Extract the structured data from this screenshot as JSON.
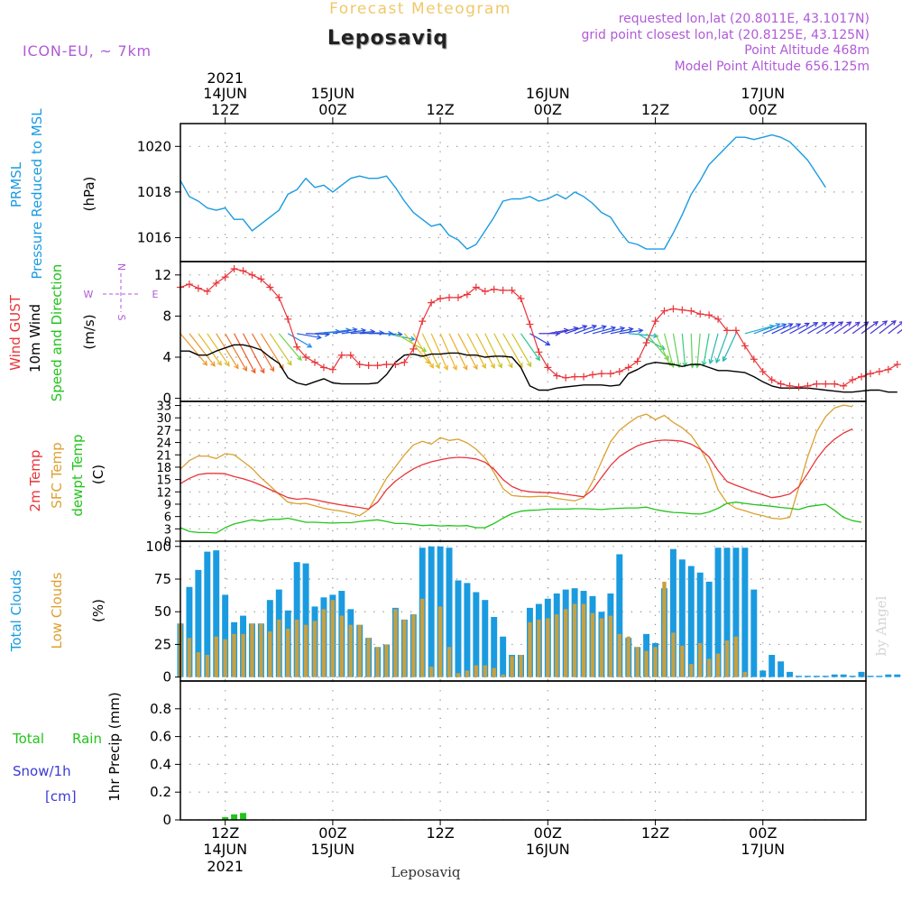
{
  "header": {
    "product": "Forecast Meteogram",
    "location": "Leposaviq",
    "model": "ICON-EU, ~ 7km",
    "requested": "requested lon,lat (20.8011E, 43.1017N)",
    "grid_point": "grid point closest lon,lat (20.8125E, 43.125N)",
    "altitude": "Point Altitude 468m",
    "model_altitude": "Model Point Altitude 656.125m",
    "credit": "by Angel",
    "bottom_label": "Leposaviq"
  },
  "time_axis": {
    "year": "2021",
    "ticks": [
      {
        "t": 12,
        "hour": "12Z",
        "day": "14JUN"
      },
      {
        "t": 24,
        "hour": "00Z",
        "day": "15JUN"
      },
      {
        "t": 36,
        "hour": "12Z",
        "day": ""
      },
      {
        "t": 48,
        "hour": "00Z",
        "day": "16JUN"
      },
      {
        "t": 60,
        "hour": "12Z",
        "day": ""
      },
      {
        "t": 72,
        "hour": "00Z",
        "day": "17JUN"
      }
    ],
    "range_hours": [
      7,
      83.5
    ]
  },
  "colors": {
    "pressure": "#1a9be0",
    "gust": "#e8353a",
    "wind": "#000000",
    "temp2m": "#e8353a",
    "sfc": "#dca030",
    "dewpt": "#22c41a",
    "clouds_total": "#1a9be0",
    "clouds_low": "#c8a040",
    "rain": "#22c41a",
    "snow": "#3a3ad8",
    "header_purple": "#b05ad8",
    "header_orange": "#f0c86a"
  },
  "panels": {
    "pressure": {
      "labels": [
        "PRMSL",
        "Pressure Reduced to MSL",
        "(hPa)"
      ]
    },
    "wind": {
      "labels": [
        "Wind GUST",
        "10m Wind",
        "Speed and Direction",
        "(m/s)"
      ],
      "compass": [
        "N",
        "W",
        "E",
        "S"
      ]
    },
    "temp": {
      "labels": [
        "2m Temp",
        "SFC Temp",
        "dewpt Temp",
        "(C)"
      ]
    },
    "clouds": {
      "labels": [
        "Total Clouds",
        "Low Clouds",
        "(%)"
      ]
    },
    "precip": {
      "labels": [
        "Total",
        "Rain",
        "Snow/1h",
        "[cm]",
        "1hr Precip (mm)"
      ]
    }
  },
  "chart_data": [
    {
      "type": "line",
      "title": "PRMSL",
      "ylabel": "(hPa)",
      "ylim": [
        1014.95,
        1021.0
      ],
      "yticks": [
        1016,
        1018,
        1020
      ],
      "grid": true,
      "start_hour": 7,
      "step_hours": 1,
      "series": [
        {
          "name": "PRMSL",
          "values": [
            1018.5,
            1017.8,
            1017.6,
            1017.3,
            1017.2,
            1017.3,
            1016.8,
            1016.8,
            1016.3,
            1016.6,
            1016.9,
            1017.2,
            1017.9,
            1018.1,
            1018.6,
            1018.2,
            1018.3,
            1018.0,
            1018.3,
            1018.6,
            1018.7,
            1018.6,
            1018.6,
            1018.7,
            1018.2,
            1017.6,
            1017.1,
            1016.8,
            1016.5,
            1016.6,
            1016.1,
            1015.9,
            1015.5,
            1015.7,
            1016.3,
            1016.9,
            1017.6,
            1017.7,
            1017.7,
            1017.8,
            1017.6,
            1017.7,
            1017.9,
            1017.7,
            1018.0,
            1017.8,
            1017.5,
            1017.1,
            1016.9,
            1016.3,
            1015.8,
            1015.7,
            1015.5,
            1015.5,
            1015.5,
            1016.2,
            1017.0,
            1017.9,
            1018.5,
            1019.2,
            1019.6,
            1020.0,
            1020.4,
            1020.4,
            1020.3,
            1020.4,
            1020.5,
            1020.4,
            1020.2,
            1019.8,
            1019.4,
            1018.8,
            1018.2
          ]
        }
      ]
    },
    {
      "type": "line",
      "title": "Wind",
      "ylabel": "(m/s)",
      "ylim": [
        -0.3,
        13.3
      ],
      "yticks": [
        0,
        4,
        8,
        12
      ],
      "grid": true,
      "start_hour": 7,
      "step_hours": 1,
      "series": [
        {
          "name": "Wind GUST",
          "values": [
            10.8,
            11.1,
            10.7,
            10.4,
            11.2,
            11.8,
            12.6,
            12.4,
            12.0,
            11.6,
            10.8,
            9.8,
            7.7,
            5.0,
            4.0,
            3.5,
            3.0,
            2.8,
            4.2,
            4.2,
            3.3,
            3.2,
            3.2,
            3.3,
            3.3,
            3.5,
            4.8,
            7.5,
            9.3,
            9.7,
            9.8,
            9.8,
            10.1,
            10.8,
            10.4,
            10.6,
            10.5,
            10.5,
            9.7,
            7.2,
            4.5,
            3.0,
            2.2,
            2.0,
            2.1,
            2.1,
            2.3,
            2.4,
            2.4,
            2.6,
            3.0,
            3.6,
            5.4,
            7.5,
            8.5,
            8.7,
            8.6,
            8.5,
            8.2,
            8.1,
            7.7,
            6.6,
            6.6,
            5.1,
            3.8,
            2.6,
            1.8,
            1.4,
            1.2,
            1.1,
            1.2,
            1.4,
            1.4,
            1.4,
            1.2,
            1.8,
            2.1,
            2.4,
            2.6,
            2.8,
            3.3
          ]
        },
        {
          "name": "10m Wind",
          "values": [
            4.6,
            4.6,
            4.2,
            4.2,
            4.6,
            4.9,
            5.2,
            5.2,
            5.0,
            4.7,
            4.0,
            3.4,
            2.0,
            1.5,
            1.3,
            1.6,
            1.9,
            1.5,
            1.4,
            1.4,
            1.4,
            1.4,
            1.5,
            2.3,
            3.5,
            4.2,
            4.3,
            4.1,
            4.3,
            4.3,
            4.4,
            4.4,
            4.2,
            4.2,
            4.0,
            4.1,
            4.1,
            4.0,
            3.0,
            1.2,
            0.8,
            0.8,
            1.0,
            1.1,
            1.2,
            1.3,
            1.3,
            1.3,
            1.2,
            1.3,
            2.4,
            2.8,
            3.3,
            3.5,
            3.4,
            3.3,
            3.1,
            3.3,
            3.3,
            3.0,
            2.7,
            2.7,
            2.6,
            2.5,
            2.1,
            1.6,
            1.2,
            1.0,
            1.0,
            1.0,
            1.0,
            0.9,
            0.8,
            0.7,
            0.6,
            0.6,
            0.7,
            0.8,
            0.8,
            0.6,
            0.6
          ]
        }
      ],
      "barbs": {
        "start_hour": 7,
        "step_hours": 1,
        "speed_scale": [
          0,
          5.5
        ],
        "dir_deg": [
          320,
          322,
          324,
          326,
          328,
          330,
          332,
          332,
          330,
          328,
          326,
          320,
          300,
          280,
          272,
          265,
          262,
          260,
          262,
          265,
          268,
          270,
          272,
          282,
          300,
          320,
          330,
          334,
          336,
          336,
          334,
          332,
          332,
          332,
          334,
          332,
          330,
          330,
          325,
          300,
          270,
          260,
          255,
          250,
          250,
          252,
          255,
          256,
          258,
          262,
          275,
          300,
          320,
          335,
          345,
          350,
          355,
          358,
          5,
          10,
          15,
          20,
          25,
          255,
          250,
          248,
          245,
          244,
          242,
          240,
          240,
          238,
          236,
          235,
          235,
          234,
          234,
          233,
          232,
          232,
          232
        ]
      }
    },
    {
      "type": "line",
      "title": "Temperature",
      "ylabel": "(C)",
      "ylim": [
        0,
        34
      ],
      "yticks": [
        0,
        3,
        6,
        9,
        12,
        15,
        18,
        21,
        24,
        27,
        30,
        33
      ],
      "grid": true,
      "start_hour": 7,
      "step_hours": 1,
      "series": [
        {
          "name": "2m Temp",
          "values": [
            14.0,
            15.3,
            16.2,
            16.5,
            16.5,
            16.4,
            15.7,
            15.2,
            14.5,
            13.6,
            12.6,
            11.6,
            10.6,
            10.2,
            10.4,
            10.1,
            9.6,
            9.2,
            8.8,
            8.5,
            8.2,
            7.8,
            9.5,
            12.5,
            14.6,
            16.2,
            17.6,
            18.6,
            19.3,
            19.8,
            20.2,
            20.4,
            20.3,
            20.0,
            19.2,
            17.5,
            15.0,
            13.3,
            12.4,
            12.0,
            11.9,
            11.8,
            11.7,
            11.4,
            11.1,
            10.8,
            12.5,
            15.5,
            18.4,
            20.6,
            22.0,
            23.2,
            23.9,
            24.4,
            24.6,
            24.5,
            24.3,
            23.6,
            22.4,
            20.5,
            17.2,
            14.5,
            13.6,
            12.8,
            12.0,
            11.3,
            10.6,
            10.9,
            11.5,
            13.2,
            16.5,
            20.0,
            22.8,
            24.8,
            26.3,
            27.3
          ]
        },
        {
          "name": "SFC Temp",
          "values": [
            17.5,
            19.6,
            20.7,
            20.7,
            20.1,
            21.3,
            21.0,
            19.4,
            17.7,
            15.4,
            13.5,
            11.4,
            9.5,
            9.1,
            9.2,
            8.6,
            8.0,
            7.6,
            7.3,
            6.8,
            6.2,
            7.7,
            11.5,
            15.3,
            18.1,
            21.0,
            23.4,
            24.3,
            23.6,
            25.2,
            24.5,
            24.8,
            23.9,
            22.4,
            20.2,
            16.7,
            12.8,
            11.1,
            10.9,
            10.8,
            10.9,
            10.9,
            10.4,
            10.1,
            9.8,
            10.6,
            14.5,
            19.4,
            24.2,
            27.0,
            28.7,
            30.2,
            30.9,
            29.6,
            30.6,
            28.9,
            27.6,
            25.7,
            22.6,
            18.5,
            12.5,
            9.3,
            8.0,
            7.4,
            6.7,
            6.2,
            5.6,
            5.4,
            5.8,
            13.0,
            20.5,
            26.6,
            30.3,
            32.4,
            33.1,
            32.7
          ]
        },
        {
          "name": "dewpt Temp",
          "values": [
            3.3,
            2.4,
            2.1,
            2.1,
            2.0,
            3.3,
            4.2,
            4.7,
            5.2,
            4.9,
            5.3,
            5.3,
            5.6,
            5.1,
            4.6,
            4.6,
            4.5,
            4.4,
            4.5,
            4.5,
            4.8,
            5.0,
            5.2,
            4.8,
            4.3,
            4.3,
            4.1,
            3.8,
            3.9,
            3.7,
            3.8,
            3.7,
            3.8,
            3.3,
            3.3,
            4.3,
            5.6,
            6.7,
            7.3,
            7.5,
            7.6,
            7.8,
            7.8,
            7.8,
            7.9,
            7.9,
            7.8,
            7.7,
            7.9,
            8.0,
            8.1,
            8.1,
            8.3,
            7.7,
            7.3,
            7.0,
            6.9,
            6.7,
            6.6,
            7.1,
            8.0,
            9.2,
            9.5,
            9.2,
            8.9,
            8.7,
            8.5,
            8.2,
            8.0,
            7.7,
            8.4,
            8.7,
            9.0,
            7.5,
            5.8,
            5.0,
            4.6
          ]
        }
      ]
    },
    {
      "type": "bar",
      "title": "Clouds",
      "ylabel": "(%)",
      "ylim": [
        -3,
        104
      ],
      "yticks": [
        0,
        25,
        50,
        75,
        100
      ],
      "grid": true,
      "start_hour": 7,
      "step_hours": 1,
      "series": [
        {
          "name": "Total Clouds",
          "values": [
            41,
            69,
            82,
            96,
            97,
            63,
            42,
            47,
            41,
            41,
            59,
            67,
            51,
            88,
            87,
            54,
            61,
            63,
            66,
            52,
            40,
            30,
            23,
            25,
            53,
            44,
            48,
            99,
            100,
            100,
            99,
            74,
            72,
            65,
            59,
            46,
            31,
            17,
            17,
            53,
            56,
            60,
            64,
            67,
            68,
            66,
            62,
            50,
            64,
            94,
            30,
            23,
            33,
            26,
            68,
            98,
            90,
            85,
            80,
            73,
            99,
            99,
            99,
            99,
            67,
            5,
            17,
            12,
            4,
            1,
            1,
            1,
            1,
            2,
            2,
            1,
            4,
            1,
            1,
            2,
            2,
            30,
            62,
            27
          ]
        },
        {
          "name": "Low Clouds",
          "values": [
            41,
            30,
            19,
            17,
            31,
            29,
            33,
            33,
            41,
            41,
            35,
            44,
            37,
            44,
            40,
            43,
            52,
            59,
            47,
            40,
            40,
            30,
            23,
            25,
            52,
            44,
            48,
            60,
            8,
            54,
            23,
            3,
            5,
            9,
            9,
            7,
            2,
            16,
            17,
            42,
            44,
            45,
            48,
            52,
            56,
            56,
            49,
            45,
            47,
            33,
            31,
            23,
            20,
            23,
            73,
            34,
            24,
            10,
            26,
            14,
            18,
            28,
            31,
            4,
            0,
            0,
            0,
            0,
            0,
            0,
            0,
            0,
            0,
            0,
            0,
            0,
            0,
            0,
            0,
            0,
            0,
            0,
            2,
            2
          ]
        }
      ]
    },
    {
      "type": "bar",
      "title": "1hr Precip (mm)",
      "ylabel": "1hr Precip (mm)",
      "ylim": [
        0,
        1.0
      ],
      "yticks": [
        0,
        0.2,
        0.4,
        0.6,
        0.8
      ],
      "grid": true,
      "series": [
        {
          "name": "Total Rain",
          "x": [
            12,
            13,
            14
          ],
          "values": [
            0.02,
            0.04,
            0.05
          ]
        }
      ]
    }
  ]
}
